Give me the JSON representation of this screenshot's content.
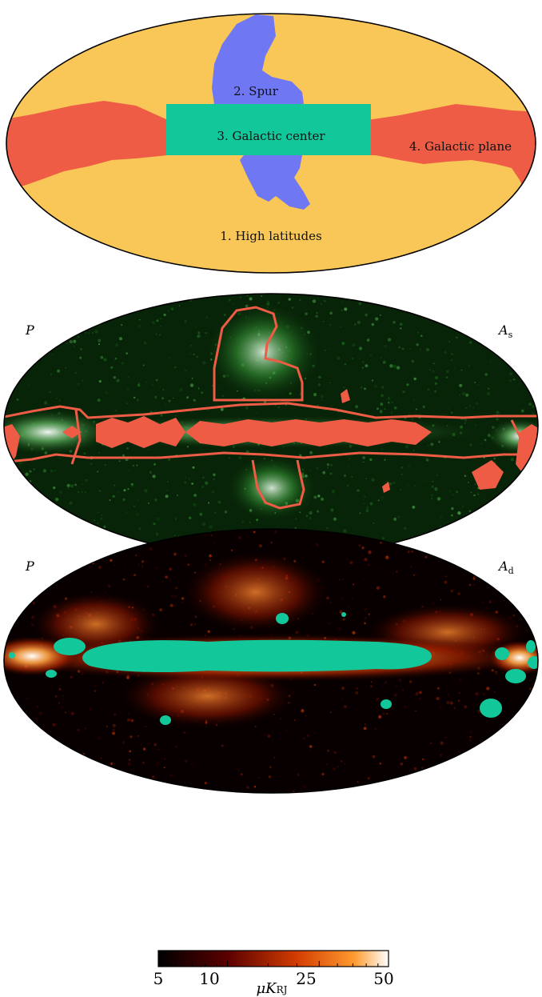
{
  "mask_map": {
    "regions": [
      {
        "id": 1,
        "label": "1. High latitudes",
        "color": "#f9c758"
      },
      {
        "id": 2,
        "label": "2. Spur",
        "color": "#6f78f2"
      },
      {
        "id": 3,
        "label": "3. Galactic center",
        "color": "#12c89b"
      },
      {
        "id": 4,
        "label": "4. Galactic plane",
        "color": "#ee5c45"
      }
    ]
  },
  "synchrotron_map": {
    "left_label": "P",
    "right_label_main": "A",
    "right_label_sub": "s",
    "colorbar": {
      "ticks": [
        "5",
        "10",
        "25",
        "50"
      ],
      "unit_main": "μK",
      "unit_sub": "RJ",
      "colors": [
        "#000000",
        "#0a4d0a",
        "#2e9b2e",
        "#a8dca8",
        "#ffffff"
      ]
    },
    "outline_color": "#ee5c45"
  },
  "dust_map": {
    "left_label": "P",
    "right_label_main": "A",
    "right_label_sub": "d",
    "colorbar": {
      "ticks": [
        "5",
        "10",
        "25",
        "50"
      ],
      "unit_main": "μK",
      "unit_sub": "RJ",
      "colors": [
        "#000000",
        "#5a0000",
        "#d23c00",
        "#ff9a30",
        "#ffffff"
      ]
    },
    "mask_color": "#12c89b"
  }
}
